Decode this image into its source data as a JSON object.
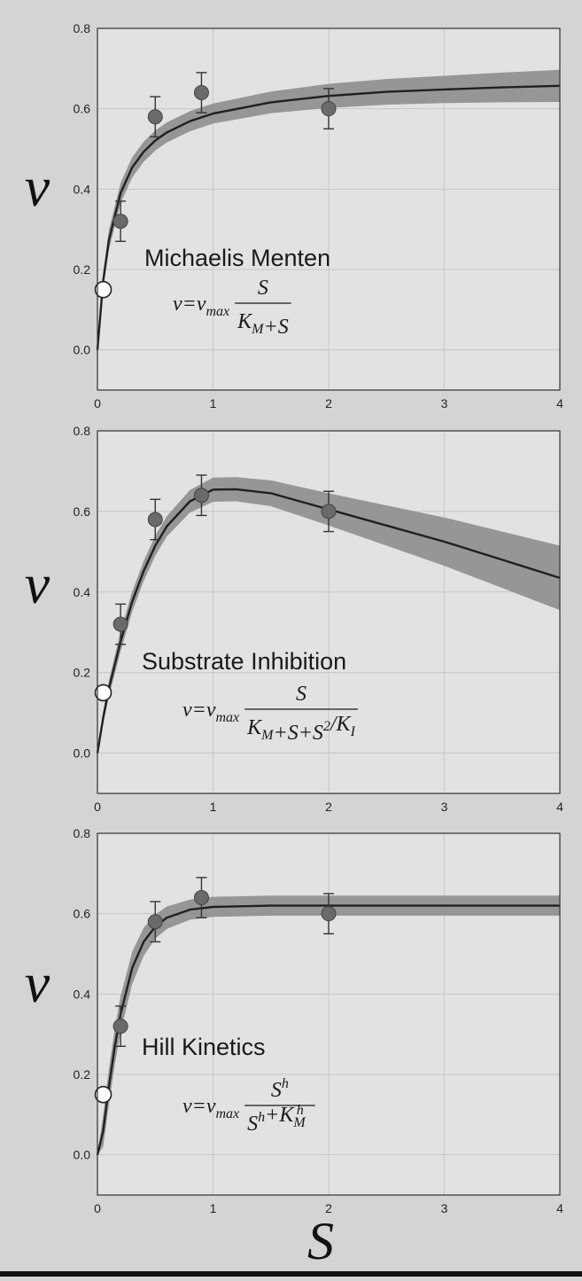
{
  "figure": {
    "ylabel": "v",
    "xlabel": "S",
    "colors": {
      "page_background": "#d4d4d4",
      "plot_background": "#e2e2e2",
      "grid": "#c6c6c6",
      "band": "#8e8e8e",
      "curve": "#202020",
      "point": "#6a6a6a",
      "open_point": "#ffffff"
    }
  },
  "chart_data": [
    {
      "type": "line",
      "title": "Michaelis Menten",
      "equation": {
        "lhs": "v=v",
        "sub": "max",
        "numerator": [
          {
            "t": "S"
          }
        ],
        "denominator": [
          {
            "t": "K"
          },
          {
            "t": "M",
            "sub": true
          },
          {
            "t": "+S"
          }
        ]
      },
      "xlim": [
        0,
        4
      ],
      "ylim": [
        -0.1,
        0.8
      ],
      "xticks": [
        "0",
        "1",
        "2",
        "3",
        "4"
      ],
      "yticks": [
        "0.0",
        "0.2",
        "0.4",
        "0.6",
        "0.8"
      ],
      "grid": true,
      "observations": [
        {
          "x": 0.2,
          "y": 0.32,
          "err": 0.05
        },
        {
          "x": 0.5,
          "y": 0.58,
          "err": 0.05
        },
        {
          "x": 0.9,
          "y": 0.64,
          "err": 0.05
        },
        {
          "x": 2.0,
          "y": 0.6,
          "err": 0.05
        }
      ],
      "open_point": {
        "x": 0.05,
        "y": 0.15
      },
      "fit": {
        "x": [
          0,
          0.05,
          0.1,
          0.2,
          0.3,
          0.4,
          0.5,
          0.6,
          0.8,
          1.0,
          1.5,
          2.0,
          2.5,
          3.0,
          3.5,
          4.0
        ],
        "y": [
          0.0,
          0.172,
          0.274,
          0.39,
          0.454,
          0.493,
          0.521,
          0.541,
          0.569,
          0.588,
          0.616,
          0.632,
          0.642,
          0.648,
          0.653,
          0.657
        ],
        "band": [
          0.0,
          0.02,
          0.025,
          0.025,
          0.025,
          0.025,
          0.025,
          0.025,
          0.025,
          0.025,
          0.027,
          0.03,
          0.032,
          0.034,
          0.037,
          0.04
        ]
      }
    },
    {
      "type": "line",
      "title": "Substrate Inhibition",
      "equation": {
        "lhs": "v=v",
        "sub": "max",
        "numerator": [
          {
            "t": "S"
          }
        ],
        "denominator": [
          {
            "t": "K"
          },
          {
            "t": "M",
            "sub": true
          },
          {
            "t": "+S+S"
          },
          {
            "t": "2",
            "sup": true
          },
          {
            "t": "/K"
          },
          {
            "t": "I",
            "sub": true
          }
        ]
      },
      "xlim": [
        0,
        4
      ],
      "ylim": [
        -0.1,
        0.8
      ],
      "xticks": [
        "0",
        "1",
        "2",
        "3",
        "4"
      ],
      "yticks": [
        "0.0",
        "0.2",
        "0.4",
        "0.6",
        "0.8"
      ],
      "grid": true,
      "observations": [
        {
          "x": 0.2,
          "y": 0.32,
          "err": 0.05
        },
        {
          "x": 0.5,
          "y": 0.58,
          "err": 0.05
        },
        {
          "x": 0.9,
          "y": 0.64,
          "err": 0.05
        },
        {
          "x": 2.0,
          "y": 0.6,
          "err": 0.05
        }
      ],
      "open_point": {
        "x": 0.05,
        "y": 0.15
      },
      "fit": {
        "x": [
          0,
          0.05,
          0.1,
          0.2,
          0.3,
          0.4,
          0.5,
          0.6,
          0.8,
          1.0,
          1.2,
          1.5,
          2.0,
          2.5,
          3.0,
          3.5,
          4.0
        ],
        "y": [
          0.0,
          0.088,
          0.161,
          0.277,
          0.376,
          0.452,
          0.515,
          0.563,
          0.625,
          0.654,
          0.655,
          0.645,
          0.605,
          0.565,
          0.525,
          0.48,
          0.435
        ],
        "band": [
          0.0,
          0.015,
          0.02,
          0.025,
          0.025,
          0.025,
          0.025,
          0.025,
          0.028,
          0.03,
          0.03,
          0.032,
          0.04,
          0.05,
          0.06,
          0.07,
          0.08
        ]
      }
    },
    {
      "type": "line",
      "title": "Hill Kinetics",
      "equation": {
        "lhs": "v=v",
        "sub": "max",
        "numerator": [
          {
            "t": "S"
          },
          {
            "t": "h",
            "sup": true
          }
        ],
        "denominator": [
          {
            "t": "S"
          },
          {
            "t": "h",
            "sup": true
          },
          {
            "t": "+K"
          },
          {
            "t": "M",
            "sub": true,
            "sup2": "h"
          }
        ]
      },
      "xlim": [
        0,
        4
      ],
      "ylim": [
        -0.1,
        0.8
      ],
      "xticks": [
        "0",
        "1",
        "2",
        "3",
        "4"
      ],
      "yticks": [
        "0.0",
        "0.2",
        "0.4",
        "0.6",
        "0.8"
      ],
      "grid": true,
      "observations": [
        {
          "x": 0.2,
          "y": 0.32,
          "err": 0.05
        },
        {
          "x": 0.5,
          "y": 0.58,
          "err": 0.05
        },
        {
          "x": 0.9,
          "y": 0.64,
          "err": 0.05
        },
        {
          "x": 2.0,
          "y": 0.6,
          "err": 0.05
        }
      ],
      "open_point": {
        "x": 0.05,
        "y": 0.15
      },
      "fit": {
        "x": [
          0,
          0.05,
          0.1,
          0.15,
          0.2,
          0.3,
          0.4,
          0.5,
          0.6,
          0.8,
          1.0,
          1.5,
          2.0,
          3.0,
          4.0
        ],
        "y": [
          0.0,
          0.06,
          0.17,
          0.27,
          0.35,
          0.465,
          0.53,
          0.568,
          0.59,
          0.61,
          0.617,
          0.62,
          0.62,
          0.62,
          0.62
        ],
        "band": [
          0.0,
          0.04,
          0.045,
          0.045,
          0.045,
          0.04,
          0.035,
          0.03,
          0.028,
          0.025,
          0.025,
          0.025,
          0.025,
          0.025,
          0.025
        ]
      }
    }
  ]
}
